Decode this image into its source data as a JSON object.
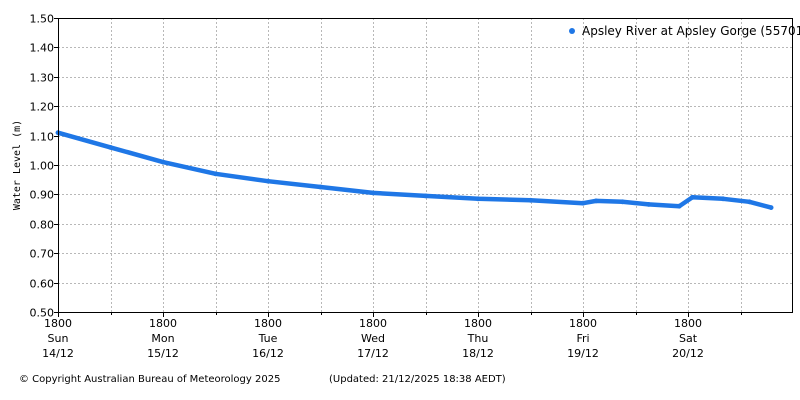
{
  "chart_data": {
    "type": "line",
    "title": "",
    "xlabel": "",
    "ylabel": "Water Level (m)",
    "ylim": [
      0.5,
      1.5
    ],
    "yticks": [
      "0.50",
      "0.60",
      "0.70",
      "0.80",
      "0.90",
      "1.00",
      "1.10",
      "1.20",
      "1.30",
      "1.40",
      "1.50"
    ],
    "x_range": [
      "2025-12-14 18:00",
      "2025-12-21 13:00"
    ],
    "xticks": [
      {
        "time": "1800",
        "day": "Sun",
        "date": "14/12"
      },
      {
        "time": "1800",
        "day": "Mon",
        "date": "15/12"
      },
      {
        "time": "1800",
        "day": "Tue",
        "date": "16/12"
      },
      {
        "time": "1800",
        "day": "Wed",
        "date": "17/12"
      },
      {
        "time": "1800",
        "day": "Thu",
        "date": "18/12"
      },
      {
        "time": "1800",
        "day": "Fri",
        "date": "19/12"
      },
      {
        "time": "1800",
        "day": "Sat",
        "date": "20/12"
      }
    ],
    "grid": true,
    "legend_position": "top-right",
    "series": [
      {
        "name": "Apsley River at Apsley Gorge (557013)",
        "color": "#1f77e6",
        "points": [
          [
            "2025-12-14 18:00",
            1.11
          ],
          [
            "2025-12-15 06:00",
            1.06
          ],
          [
            "2025-12-15 18:00",
            1.01
          ],
          [
            "2025-12-16 06:00",
            0.97
          ],
          [
            "2025-12-16 18:00",
            0.945
          ],
          [
            "2025-12-17 06:00",
            0.925
          ],
          [
            "2025-12-17 18:00",
            0.905
          ],
          [
            "2025-12-18 06:00",
            0.895
          ],
          [
            "2025-12-18 18:00",
            0.885
          ],
          [
            "2025-12-19 06:00",
            0.88
          ],
          [
            "2025-12-19 18:00",
            0.87
          ],
          [
            "2025-12-19 21:00",
            0.878
          ],
          [
            "2025-12-20 03:00",
            0.875
          ],
          [
            "2025-12-20 09:00",
            0.866
          ],
          [
            "2025-12-20 16:00",
            0.86
          ],
          [
            "2025-12-20 19:00",
            0.89
          ],
          [
            "2025-12-21 02:00",
            0.885
          ],
          [
            "2025-12-21 08:00",
            0.875
          ],
          [
            "2025-12-21 13:00",
            0.855
          ]
        ]
      }
    ]
  },
  "footer": {
    "copyright": "© Copyright Australian Bureau of Meteorology 2025",
    "updated": "(Updated: 21/12/2025 18:38 AEDT)"
  }
}
